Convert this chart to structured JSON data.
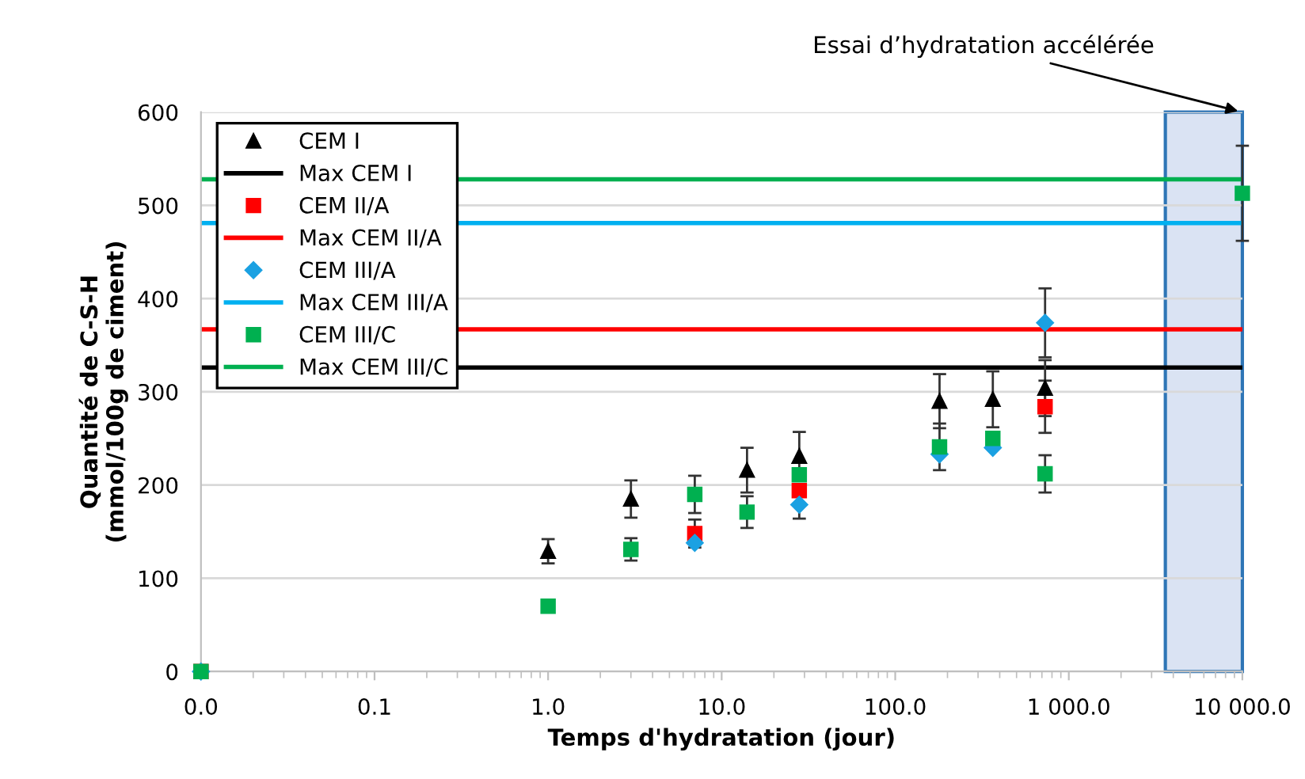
{
  "chart_data": {
    "type": "scatter",
    "xlabel": "Temps d'hydratation (jour)",
    "ylabel": "Quantité de C-S-H\n(mmol/100g de ciment)",
    "log": "x",
    "xlim": [
      0.01,
      10000
    ],
    "ylim": [
      0,
      600
    ],
    "xticks": [
      {
        "value": 0.01,
        "label": "0.0"
      },
      {
        "value": 0.1,
        "label": "0.1"
      },
      {
        "value": 1,
        "label": "1.0"
      },
      {
        "value": 10,
        "label": "10.0"
      },
      {
        "value": 100,
        "label": "100.0"
      },
      {
        "value": 1000,
        "label": "1 000.0"
      },
      {
        "value": 10000,
        "label": "10 000.0"
      }
    ],
    "yticks": [
      0,
      100,
      200,
      300,
      400,
      500,
      600
    ],
    "grid": "y",
    "legend": "top left",
    "series": [
      {
        "name": "CEM I",
        "color": "#000000",
        "marker": "triangle",
        "x": [
          1,
          3,
          14,
          28,
          180,
          365,
          730
        ],
        "values": [
          129,
          185,
          216,
          231,
          290,
          292,
          304
        ],
        "errors": [
          13,
          20,
          24,
          26,
          29,
          30,
          30
        ]
      },
      {
        "name": "CEM II/A",
        "color": "#ff0000",
        "marker": "square",
        "x": [
          0.01,
          7,
          28,
          180,
          365,
          730
        ],
        "values": [
          0,
          148,
          194,
          null,
          null,
          284
        ],
        "errors": [
          null,
          15,
          null,
          null,
          null,
          28
        ]
      },
      {
        "name": "CEM III/A",
        "color": "#1ba1e2",
        "marker": "diamond",
        "x": [
          0.01,
          7,
          28,
          180,
          365,
          730
        ],
        "values": [
          0,
          138,
          179,
          233,
          240,
          374
        ],
        "errors": [
          null,
          null,
          15,
          null,
          null,
          37
        ]
      },
      {
        "name": "CEM III/C",
        "color": "#00b050",
        "marker": "square",
        "x": [
          0.01,
          1,
          3,
          7,
          14,
          28,
          180,
          365,
          730,
          10000
        ],
        "values": [
          0,
          70,
          131,
          190,
          171,
          211,
          241,
          250,
          212,
          513
        ],
        "errors": [
          null,
          null,
          12,
          20,
          17,
          null,
          25,
          null,
          20,
          51
        ]
      }
    ],
    "ref_lines": [
      {
        "axis": "y",
        "value": 326,
        "label": "Max CEM I",
        "color": "#000000"
      },
      {
        "axis": "y",
        "value": 367,
        "label": "Max CEM II/A",
        "color": "#ff0000"
      },
      {
        "axis": "y",
        "value": 481,
        "label": "Max CEM III/A",
        "color": "#00b0f0"
      },
      {
        "axis": "y",
        "value": 528,
        "label": "Max CEM III/C",
        "color": "#00b050"
      }
    ],
    "bands": [
      {
        "axis": "x",
        "from": 3600,
        "to": 10000,
        "color": "#dae3f3"
      }
    ],
    "annotations": [
      {
        "text": "Essai d’hydratation accélérée",
        "x": 10000,
        "y": 600
      }
    ]
  }
}
